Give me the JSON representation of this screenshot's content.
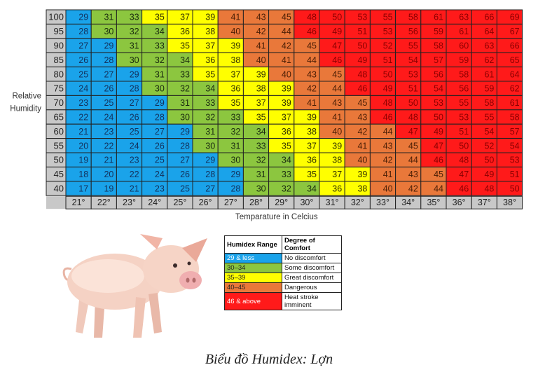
{
  "chart_data": {
    "type": "heatmap",
    "title": "",
    "xlabel": "Temparature in Celcius",
    "ylabel": "Relative Humidity",
    "x": [
      "21°",
      "22°",
      "23°",
      "24°",
      "25°",
      "26°",
      "27°",
      "28°",
      "29°",
      "30°",
      "31°",
      "32°",
      "33°",
      "34°",
      "35°",
      "36°",
      "37°",
      "38°"
    ],
    "y": [
      "100",
      "95",
      "90",
      "85",
      "80",
      "75",
      "70",
      "65",
      "60",
      "55",
      "50",
      "45",
      "40"
    ],
    "values": [
      [
        29,
        31,
        33,
        35,
        37,
        39,
        41,
        43,
        45,
        48,
        50,
        53,
        55,
        58,
        61,
        63,
        66,
        69
      ],
      [
        28,
        30,
        32,
        34,
        36,
        38,
        40,
        42,
        44,
        46,
        49,
        51,
        53,
        56,
        59,
        61,
        64,
        67
      ],
      [
        27,
        29,
        31,
        33,
        35,
        37,
        39,
        41,
        42,
        45,
        47,
        50,
        52,
        55,
        58,
        60,
        63,
        66
      ],
      [
        26,
        28,
        30,
        32,
        34,
        36,
        38,
        40,
        41,
        44,
        46,
        49,
        51,
        54,
        57,
        59,
        62,
        65
      ],
      [
        25,
        27,
        29,
        31,
        33,
        35,
        37,
        39,
        40,
        43,
        45,
        48,
        50,
        53,
        56,
        58,
        61,
        64
      ],
      [
        24,
        26,
        28,
        30,
        32,
        34,
        36,
        38,
        39,
        42,
        44,
        46,
        49,
        51,
        54,
        56,
        59,
        62
      ],
      [
        23,
        25,
        27,
        29,
        31,
        33,
        35,
        37,
        39,
        41,
        43,
        45,
        48,
        50,
        53,
        55,
        58,
        61
      ],
      [
        22,
        24,
        26,
        28,
        30,
        32,
        33,
        35,
        37,
        39,
        41,
        43,
        46,
        48,
        50,
        53,
        55,
        58
      ],
      [
        21,
        23,
        25,
        27,
        29,
        31,
        32,
        34,
        36,
        38,
        40,
        42,
        44,
        47,
        49,
        51,
        54,
        57
      ],
      [
        20,
        22,
        24,
        26,
        28,
        30,
        31,
        33,
        35,
        37,
        39,
        41,
        43,
        45,
        47,
        50,
        52,
        54
      ],
      [
        19,
        21,
        23,
        25,
        27,
        29,
        30,
        32,
        34,
        36,
        38,
        40,
        42,
        44,
        46,
        48,
        50,
        53
      ],
      [
        18,
        20,
        22,
        24,
        26,
        28,
        29,
        31,
        33,
        35,
        37,
        39,
        41,
        43,
        45,
        47,
        49,
        51
      ],
      [
        17,
        19,
        21,
        23,
        25,
        27,
        28,
        30,
        32,
        34,
        36,
        38,
        40,
        42,
        44,
        46,
        48,
        50
      ]
    ],
    "colors": {
      "blue": "#1aa3ea",
      "green": "#8cc63f",
      "yellow": "#ffff00",
      "orange": "#e9783a",
      "red": "#ff1a1a",
      "grid": "#222222",
      "header_gray": "#c8c8c8"
    }
  },
  "legend": {
    "header_range": "Humidex Range",
    "header_comfort": "Degree of Comfort",
    "rows": [
      {
        "range": "29 & less",
        "comfort": "No discomfort",
        "color": "#1aa3ea",
        "text_color": "#ffffff"
      },
      {
        "range": "30–34",
        "comfort": "Some discomfort",
        "color": "#8cc63f",
        "text_color": "#222222"
      },
      {
        "range": "35–39",
        "comfort": "Great discomfort",
        "color": "#ffff00",
        "text_color": "#222222"
      },
      {
        "range": "40–45",
        "comfort": "Dangerous",
        "color": "#e9783a",
        "text_color": "#222222"
      },
      {
        "range": "46 & above",
        "comfort": "Heat stroke imminent",
        "color": "#ff1a1a",
        "text_color": "#ffffff"
      }
    ]
  },
  "image": {
    "icon": "pig-icon"
  },
  "caption": "Biểu đồ Humidex: Lợn"
}
